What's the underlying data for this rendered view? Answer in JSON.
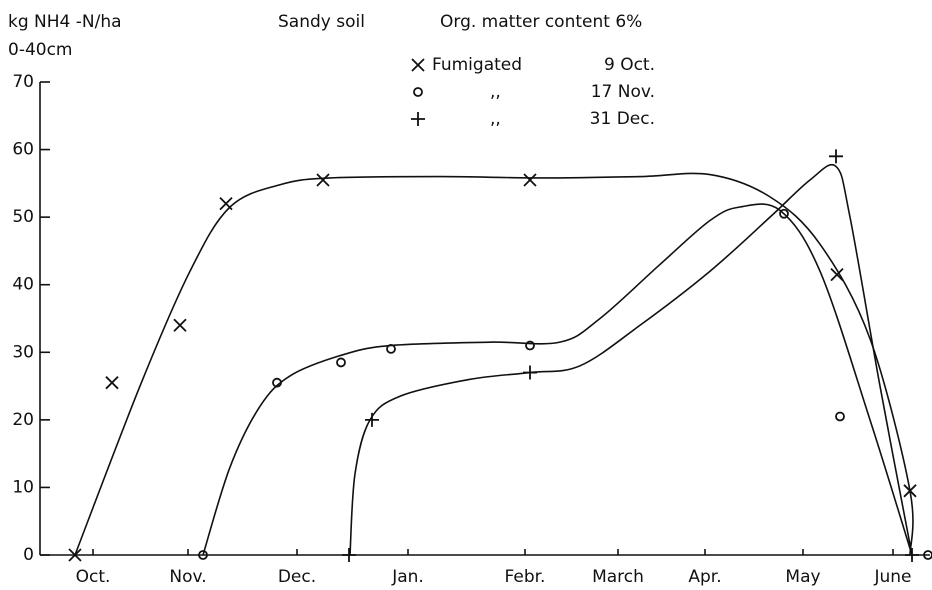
{
  "chart_data": {
    "type": "scatter",
    "title": "Sandy soil",
    "subtitle": "Org. matter content 6%",
    "ylabel": "kg NH4 -N/ha",
    "ylabel2": "0-40cm",
    "xlim": [
      0,
      8.9
    ],
    "ylim": [
      0,
      70
    ],
    "yticks": [
      0,
      10,
      20,
      30,
      40,
      50,
      60,
      70
    ],
    "xticks": [
      {
        "value": 0.53,
        "label": "Oct."
      },
      {
        "value": 1.48,
        "label": "Nov."
      },
      {
        "value": 2.57,
        "label": "Dec."
      },
      {
        "value": 3.68,
        "label": "Jan."
      },
      {
        "value": 4.85,
        "label": "Febr."
      },
      {
        "value": 5.78,
        "label": "March"
      },
      {
        "value": 6.65,
        "label": "Apr."
      },
      {
        "value": 7.63,
        "label": "May"
      },
      {
        "value": 8.53,
        "label": "June"
      }
    ],
    "series": [
      {
        "name": "Fumigated",
        "date": "9 Oct.",
        "marker": "x",
        "color": "#111111",
        "x": [
          0.35,
          0.72,
          1.4,
          1.86,
          2.83,
          4.9,
          7.97,
          8.7
        ],
        "values": [
          0,
          25.5,
          34,
          52,
          55.5,
          55.5,
          41.5,
          9.5
        ],
        "fit_x": [
          0.35,
          1.0,
          1.5,
          1.9,
          2.4,
          2.9,
          4.0,
          5.0,
          6.0,
          6.7,
          7.3,
          7.8,
          8.3,
          8.7,
          8.7
        ],
        "fit_values": [
          0,
          25,
          42,
          51.5,
          54.8,
          55.8,
          56,
          55.8,
          56,
          56.3,
          53,
          46,
          32,
          9.5,
          0
        ]
      },
      {
        "name": ",,",
        "date": "17 Nov.",
        "marker": "o",
        "color": "#111111",
        "x": [
          1.63,
          2.37,
          3.01,
          3.51,
          4.9,
          7.44,
          8.0,
          8.88
        ],
        "values": [
          0,
          25.5,
          28.5,
          30.5,
          31,
          50.5,
          20.5,
          0
        ],
        "fit_x": [
          1.63,
          1.9,
          2.2,
          2.5,
          3.0,
          3.5,
          4.5,
          5.2,
          5.6,
          6.2,
          6.7,
          7.0,
          7.4,
          7.8,
          8.3,
          8.72
        ],
        "fit_values": [
          0,
          13,
          22,
          26.5,
          29.5,
          31,
          31.5,
          31.5,
          35,
          43,
          49.5,
          51.5,
          51,
          42,
          20,
          0
        ]
      },
      {
        "name": ",,",
        "date": "31 Dec.",
        "marker": "+",
        "color": "#111111",
        "x": [
          3.09,
          3.32,
          4.9,
          7.96,
          8.72
        ],
        "values": [
          0,
          20,
          27,
          59,
          0
        ],
        "fit_x": [
          3.1,
          3.15,
          3.3,
          3.6,
          4.3,
          4.9,
          5.4,
          6.0,
          6.7,
          7.3,
          7.7,
          7.96,
          8.1,
          8.4,
          8.72
        ],
        "fit_values": [
          0,
          12,
          20,
          23.5,
          26,
          27,
          28,
          34,
          42,
          50,
          55.5,
          57.5,
          50,
          25,
          0
        ]
      }
    ]
  }
}
